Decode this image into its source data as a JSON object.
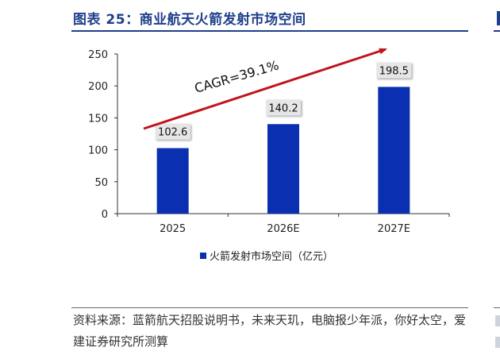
{
  "title": "图表 25：商业航天火箭发射市场空间",
  "source": "资料来源：蓝箭航天招股说明书，未来天玑，电脑报少年派，你好太空，爱建证券研究所测算",
  "chart_data": {
    "type": "bar",
    "categories": [
      "2025",
      "2026E",
      "2027E"
    ],
    "series": [
      {
        "name": "火箭发射市场空间（亿元）",
        "values": [
          102.6,
          140.2,
          198.5
        ],
        "color": "#0a2fb0"
      }
    ],
    "value_labels": [
      "102.6",
      "140.2",
      "198.5"
    ],
    "ylim": [
      0,
      250
    ],
    "yticks": [
      0,
      50,
      100,
      150,
      200,
      250
    ],
    "annotation": "CAGR=39.1%",
    "arrow_color": "#c0141c",
    "legend_position": "bottom",
    "grid": false
  }
}
